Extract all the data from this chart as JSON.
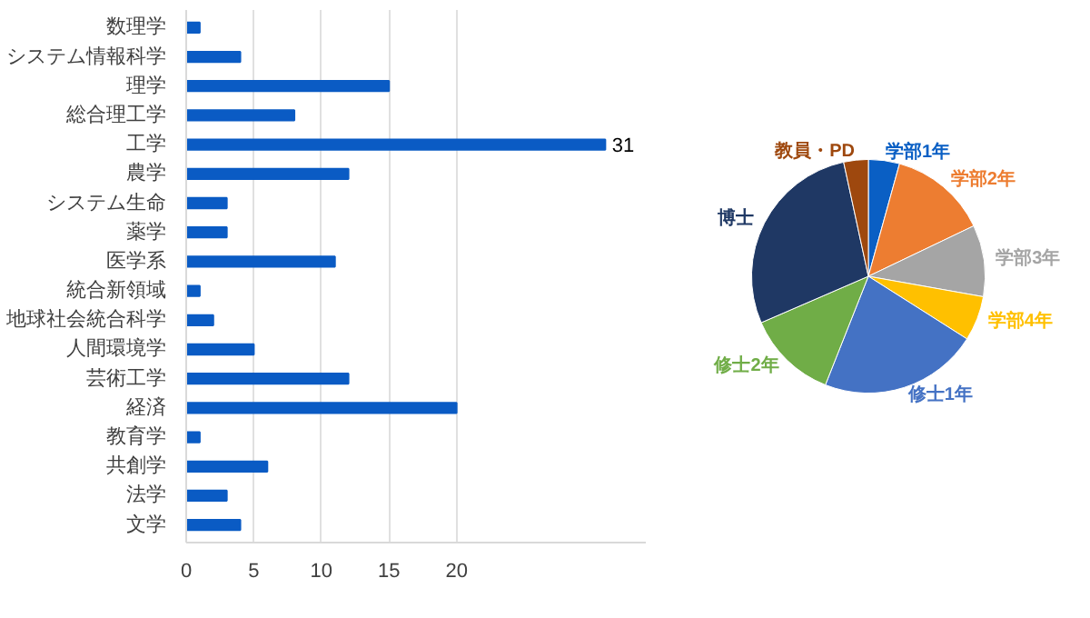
{
  "chart_data": [
    {
      "type": "bar",
      "orientation": "horizontal",
      "categories": [
        "数理学",
        "システム情報科学",
        "理学",
        "総合理工学",
        "工学",
        "農学",
        "システム生命",
        "薬学",
        "医学系",
        "統合新領域",
        "地球社会統合科学",
        "人間環境学",
        "芸術工学",
        "経済",
        "教育学",
        "共創学",
        "法学",
        "文学"
      ],
      "values": [
        1,
        4,
        15,
        8,
        31,
        12,
        3,
        3,
        11,
        1,
        2,
        5,
        12,
        20,
        1,
        6,
        3,
        4
      ],
      "value_labels": [
        null,
        null,
        null,
        null,
        "31",
        null,
        null,
        null,
        null,
        null,
        null,
        null,
        null,
        null,
        null,
        null,
        null,
        null
      ],
      "color": "#0a5bc4",
      "xlim": [
        0,
        34
      ],
      "xticks": [
        0,
        5,
        10,
        15,
        20
      ],
      "grid": "x"
    },
    {
      "type": "pie",
      "categories": [
        "学部1年",
        "学部2年",
        "学部3年",
        "学部4年",
        "修士1年",
        "修士2年",
        "博士",
        "教員・PD"
      ],
      "values": [
        4.3,
        13.6,
        9.9,
        6.2,
        22.0,
        12.5,
        28.1,
        3.4
      ],
      "colors": [
        "#0a5fc4",
        "#ed7d31",
        "#a5a5a5",
        "#ffc000",
        "#4472c4",
        "#70ad47",
        "#1f3864",
        "#9e480e"
      ]
    }
  ]
}
